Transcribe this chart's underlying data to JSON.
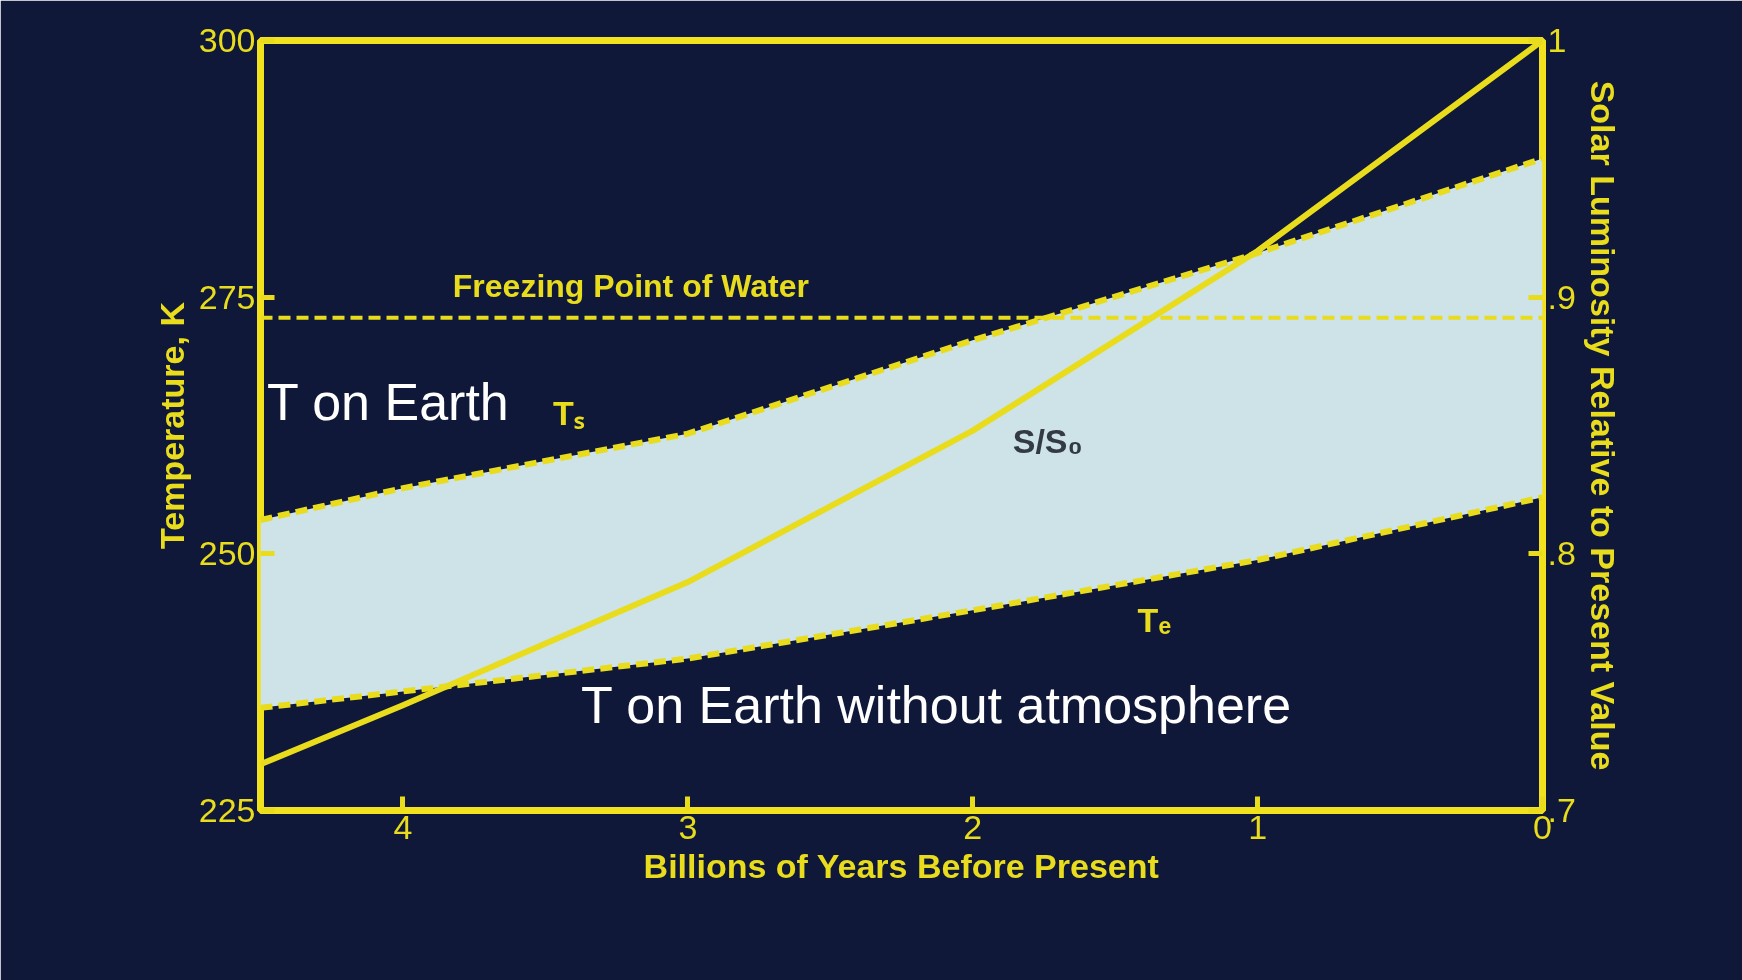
{
  "chart_data": {
    "type": "line",
    "xlabel": "Billions of Years Before Present",
    "ylabel": "Temperature, K",
    "y2label": "Solar Luminosity Relative to Present Value",
    "x": [
      4.5,
      4,
      3,
      2,
      1,
      0
    ],
    "series": [
      {
        "name": "Tₛ",
        "color": "#e8dc1c",
        "line_style": "dashed",
        "values": [
          253.3,
          256.4,
          261.7,
          270.8,
          279.3,
          288.5
        ],
        "lower": [
          235,
          236.6,
          239.8,
          244.5,
          249.4,
          255.5
        ],
        "upper": [
          253.3,
          256.4,
          261.7,
          270.8,
          279.3,
          288.5
        ]
      },
      {
        "name": "Tₑ",
        "color": "#e8dc1c",
        "line_style": "dashed",
        "values": [
          235,
          236.6,
          239.8,
          244.5,
          249.4,
          255.5
        ]
      },
      {
        "name": "S/S₀",
        "color": "#e8dc1c",
        "line_style": "solid",
        "axis": "y2",
        "values": [
          0.718,
          0.741,
          0.789,
          0.848,
          0.918,
          1.0
        ]
      }
    ],
    "xlim": [
      4.5,
      0
    ],
    "ylim": [
      225,
      300
    ],
    "y2lim": [
      0.7,
      1.0
    ],
    "xticks": [
      4,
      3,
      2,
      1,
      0
    ],
    "yticks": [
      225,
      250,
      275,
      300
    ],
    "y2ticks": [
      {
        "value": 0.7,
        "label": ".7"
      },
      {
        "value": 0.8,
        "label": ".8"
      },
      {
        "value": 0.9,
        "label": ".9"
      },
      1
    ],
    "ref_lines": [
      {
        "axis": "y",
        "value": 273,
        "label": "Freezing Point of Water",
        "color": "#e8dc1c",
        "line_style": "dashed"
      }
    ],
    "annotations": [
      "T on Earth",
      "T on Earth without atmosphere"
    ],
    "grid": false
  }
}
